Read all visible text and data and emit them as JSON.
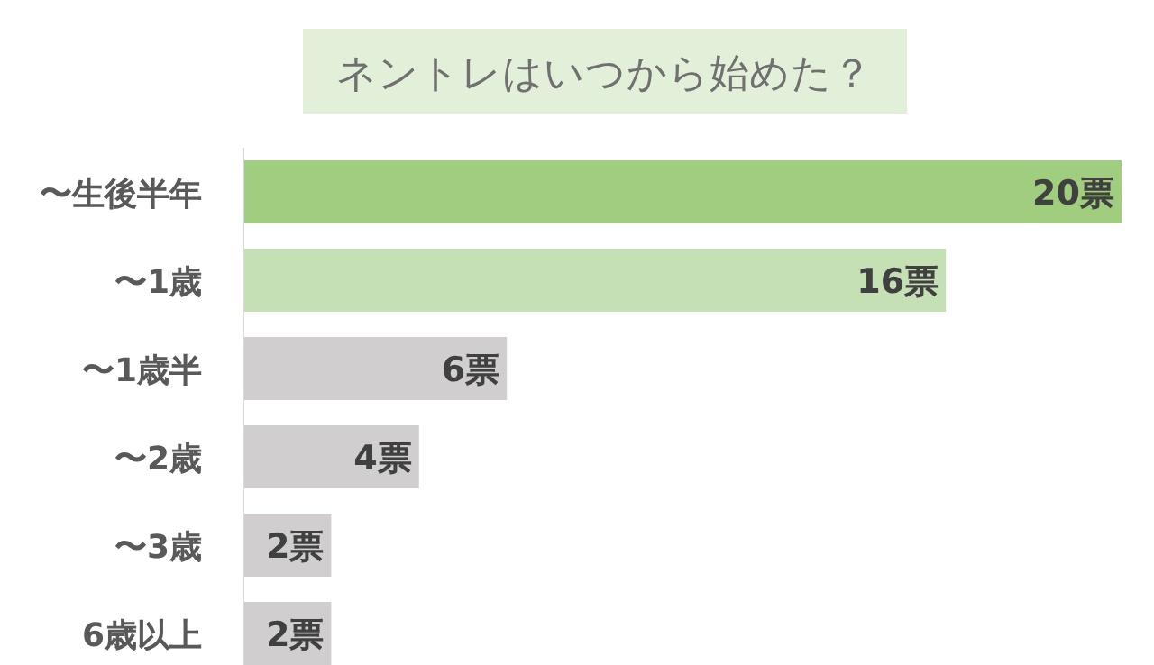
{
  "chart_data": {
    "type": "bar",
    "orientation": "horizontal",
    "title": "ネントレはいつから始めた？",
    "categories": [
      "〜生後半年",
      "〜1歳",
      "〜1歳半",
      "〜2歳",
      "〜3歳",
      "6歳以上"
    ],
    "values": [
      20,
      16,
      6,
      4,
      2,
      2
    ],
    "colors": [
      "#a0cd7e",
      "#c5e0b4",
      "#d0cece",
      "#d0cece",
      "#d0cece",
      "#d0cece"
    ],
    "value_labels": [
      "20票",
      "16票",
      "6票",
      "4票",
      "2票",
      "2票"
    ]
  }
}
